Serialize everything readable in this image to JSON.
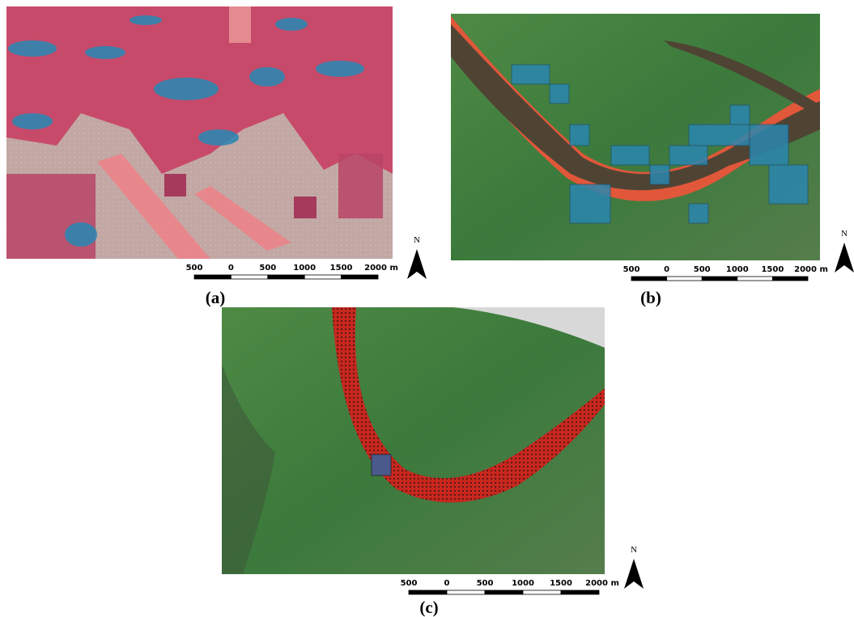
{
  "panels": [
    {
      "caption": "(a)",
      "north": "N",
      "scale_labels": [
        500,
        0,
        500,
        1000,
        1500,
        "2000 m"
      ]
    },
    {
      "caption": "(b)",
      "north": "N",
      "scale_labels": [
        500,
        0,
        500,
        1000,
        1500,
        "2000 m"
      ]
    },
    {
      "caption": "(c)",
      "north": "N",
      "scale_labels": [
        500,
        0,
        500,
        1000,
        1500,
        "2000 m"
      ]
    }
  ]
}
